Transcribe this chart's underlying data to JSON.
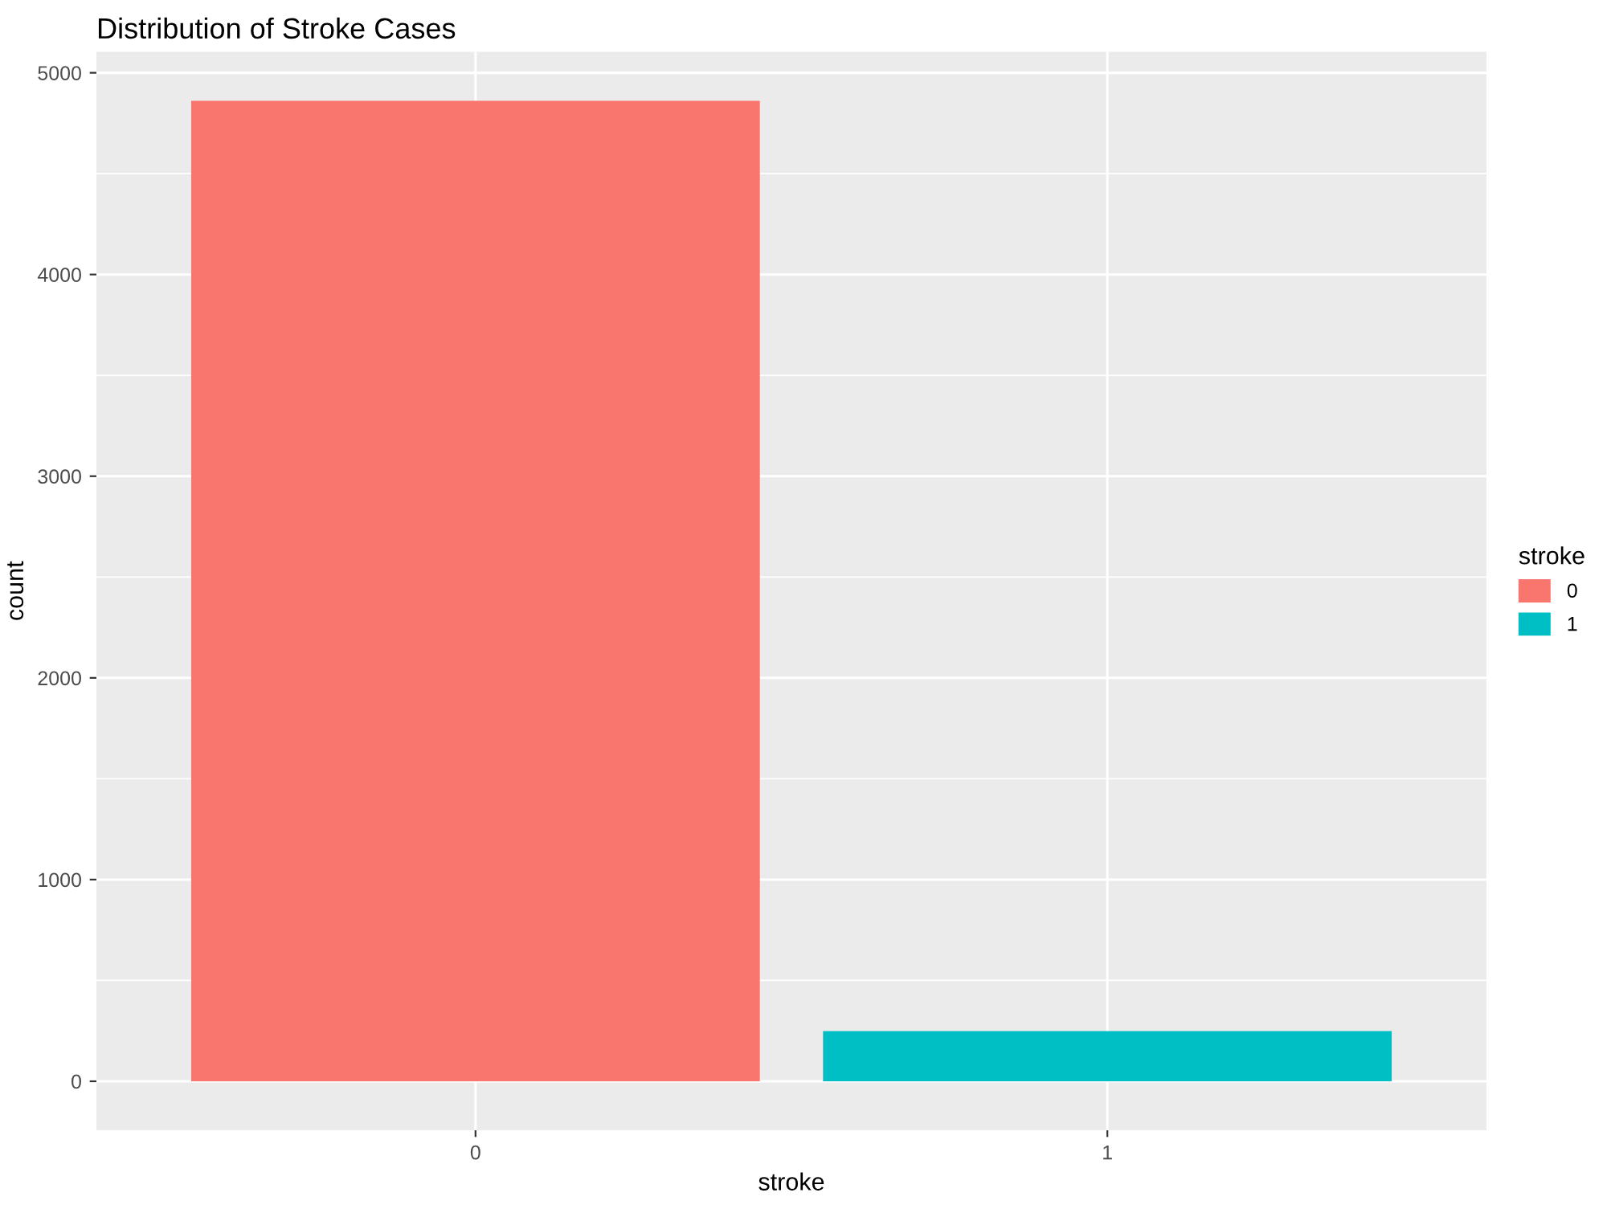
{
  "chart_data": {
    "type": "bar",
    "title": "Distribution of Stroke Cases",
    "xlabel": "stroke",
    "ylabel": "count",
    "categories": [
      "0",
      "1"
    ],
    "series": [
      {
        "name": "0",
        "color": "#f8766d",
        "values": [
          4861,
          null
        ]
      },
      {
        "name": "1",
        "color": "#00bfc4",
        "values": [
          null,
          249
        ]
      }
    ],
    "ylim": [
      -243,
      5104
    ],
    "yticks": [
      0,
      1000,
      2000,
      3000,
      4000,
      5000
    ],
    "grid": true,
    "legend": "right",
    "legend_title": "stroke"
  }
}
